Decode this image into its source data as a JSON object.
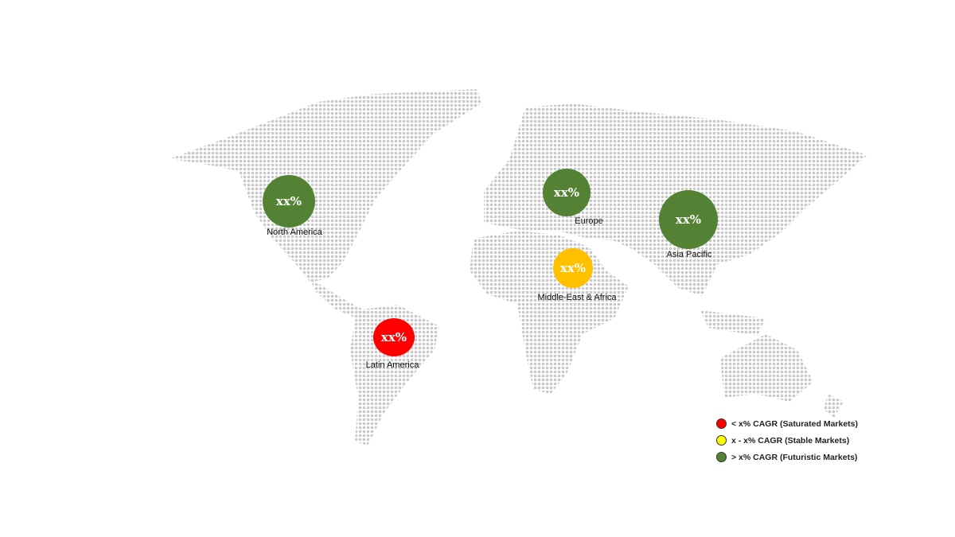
{
  "regions": [
    {
      "name": "North America",
      "value": "xx%",
      "color": "#548235",
      "category": "futuristic"
    },
    {
      "name": "Europe",
      "value": "xx%",
      "color": "#548235",
      "category": "futuristic"
    },
    {
      "name": "Asia Pacific",
      "value": "xx%",
      "color": "#548235",
      "category": "futuristic"
    },
    {
      "name": "Middle-East & Africa",
      "value": "xx%",
      "color": "#FFC000",
      "category": "stable"
    },
    {
      "name": "Latin America",
      "value": "xx%",
      "color": "#FF0000",
      "category": "saturated"
    }
  ],
  "legend": [
    {
      "label": "< x% CAGR (Saturated Markets)",
      "color": "#FF0000"
    },
    {
      "label": "x - x% CAGR (Stable Markets)",
      "color": "#FFFF00"
    },
    {
      "label": "> x% CAGR (Futuristic Markets)",
      "color": "#548235"
    }
  ],
  "map_dot_color": "#c8c8c8"
}
